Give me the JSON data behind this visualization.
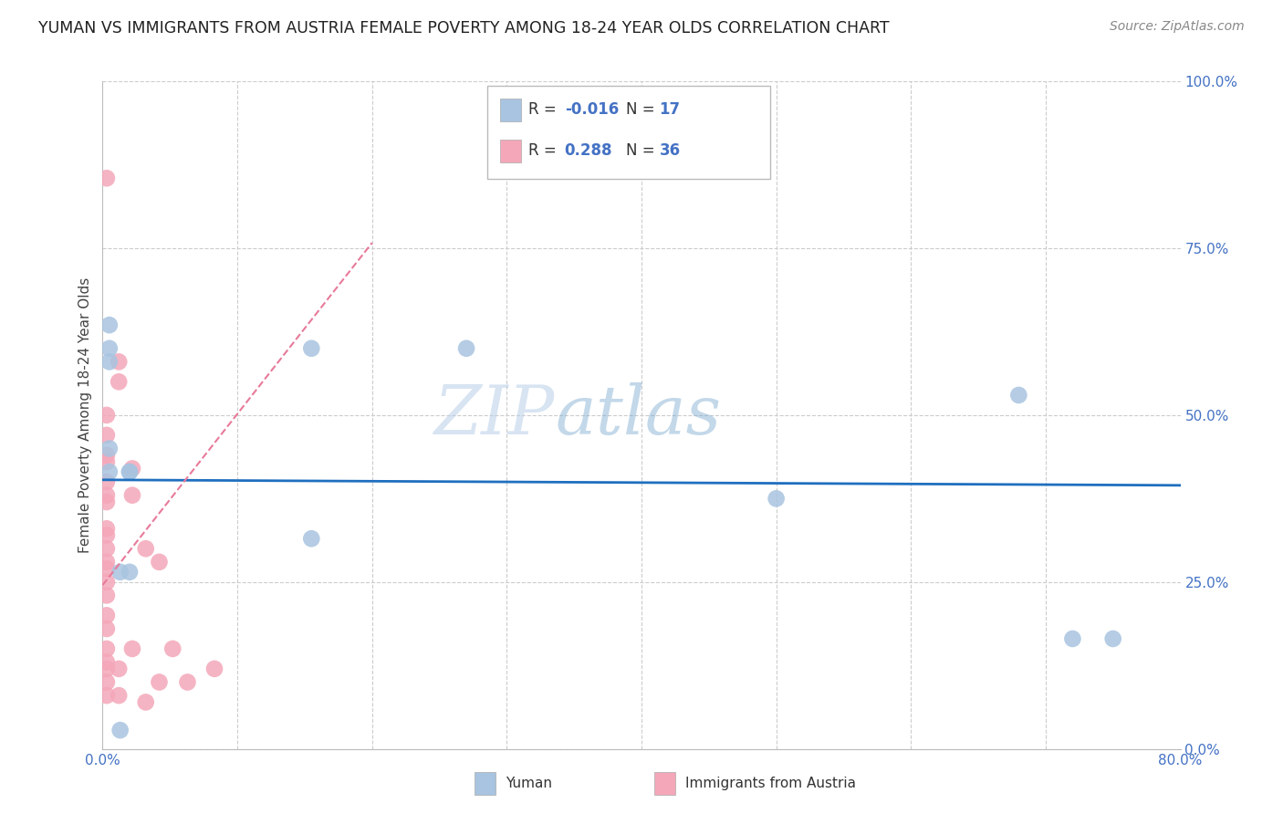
{
  "title": "YUMAN VS IMMIGRANTS FROM AUSTRIA FEMALE POVERTY AMONG 18-24 YEAR OLDS CORRELATION CHART",
  "source": "Source: ZipAtlas.com",
  "ylabel": "Female Poverty Among 18-24 Year Olds",
  "xlim": [
    0,
    0.8
  ],
  "ylim": [
    0,
    1.0
  ],
  "yticks": [
    0.0,
    0.25,
    0.5,
    0.75,
    1.0
  ],
  "yticklabels": [
    "0.0%",
    "25.0%",
    "50.0%",
    "75.0%",
    "100.0%"
  ],
  "yuman_color": "#a8c4e0",
  "austria_color": "#f4a7b9",
  "trendline_yuman_color": "#1f6fbf",
  "trendline_austria_color": "#e87a9a",
  "legend_r_yuman": "-0.016",
  "legend_n_yuman": "17",
  "legend_r_austria": "0.288",
  "legend_n_austria": "36",
  "yuman_x": [
    0.005,
    0.005,
    0.013,
    0.013,
    0.02,
    0.02,
    0.155,
    0.155,
    0.27,
    0.5,
    0.68,
    0.72,
    0.75,
    0.005,
    0.02,
    0.005,
    0.005
  ],
  "yuman_y": [
    0.635,
    0.6,
    0.265,
    0.028,
    0.265,
    0.415,
    0.315,
    0.6,
    0.6,
    0.375,
    0.53,
    0.165,
    0.165,
    0.415,
    0.415,
    0.58,
    0.45
  ],
  "austria_x": [
    0.003,
    0.003,
    0.003,
    0.003,
    0.003,
    0.003,
    0.003,
    0.003,
    0.003,
    0.003,
    0.003,
    0.003,
    0.003,
    0.003,
    0.003,
    0.003,
    0.003,
    0.003,
    0.003,
    0.003,
    0.003,
    0.003,
    0.012,
    0.012,
    0.012,
    0.012,
    0.022,
    0.022,
    0.022,
    0.032,
    0.032,
    0.042,
    0.042,
    0.052,
    0.063,
    0.083
  ],
  "austria_y": [
    0.855,
    0.5,
    0.47,
    0.44,
    0.43,
    0.4,
    0.38,
    0.37,
    0.33,
    0.32,
    0.3,
    0.28,
    0.27,
    0.25,
    0.23,
    0.2,
    0.18,
    0.15,
    0.13,
    0.12,
    0.1,
    0.08,
    0.58,
    0.55,
    0.12,
    0.08,
    0.42,
    0.38,
    0.15,
    0.3,
    0.07,
    0.28,
    0.1,
    0.15,
    0.1,
    0.12
  ],
  "watermark_line1": "ZIP",
  "watermark_line2": "atlas",
  "background_color": "#ffffff",
  "grid_color": "#cccccc",
  "grid_x": [
    0.1,
    0.2,
    0.3,
    0.4,
    0.5,
    0.6,
    0.7
  ]
}
